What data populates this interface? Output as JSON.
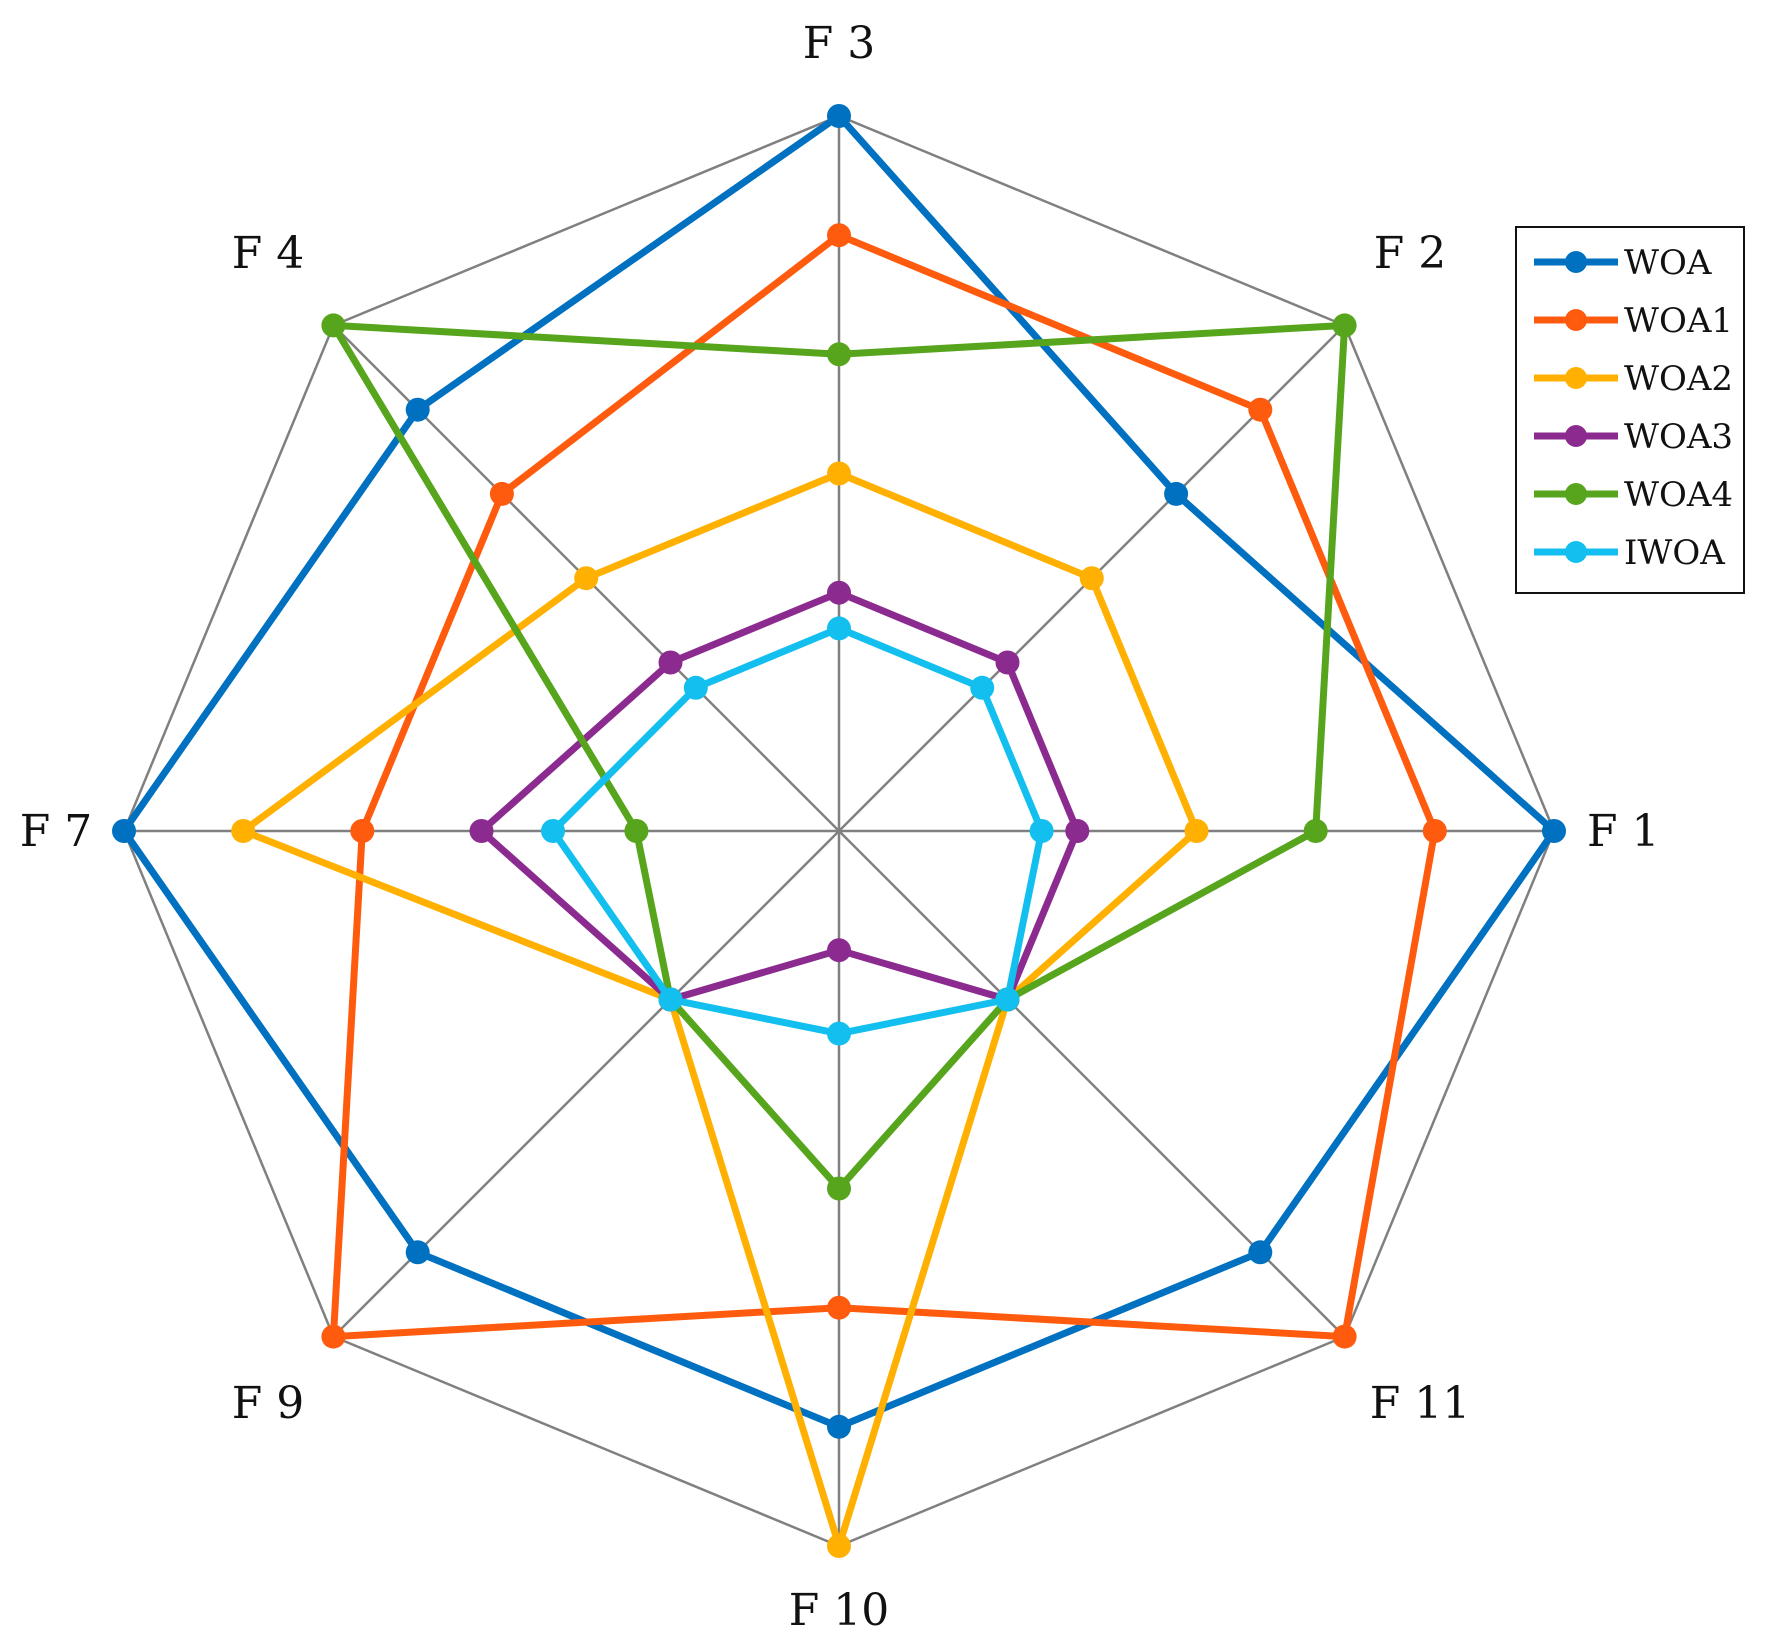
{
  "chart_data": {
    "type": "radar",
    "title": "",
    "axes": [
      "F 1",
      "F 2",
      "F 3",
      "F 4",
      "F 7",
      "F 9",
      "F 10",
      "F 11"
    ],
    "rlim": [
      0,
      6
    ],
    "ring_count": 6,
    "grid": true,
    "legend_position": "top-right",
    "grid_color": "#808080",
    "series": [
      {
        "name": "WOA",
        "color": "#0070C0",
        "values": [
          6,
          4,
          6,
          5,
          6,
          5,
          5,
          5
        ]
      },
      {
        "name": "WOA1",
        "color": "#FF5B0F",
        "values": [
          5,
          5,
          5,
          4,
          4,
          6,
          4,
          6
        ]
      },
      {
        "name": "WOA2",
        "color": "#FFB000",
        "values": [
          3,
          3,
          3,
          3,
          5,
          2,
          6,
          2
        ]
      },
      {
        "name": "WOA3",
        "color": "#8B2A8F",
        "values": [
          2,
          2,
          2,
          2,
          3,
          2,
          1,
          2
        ]
      },
      {
        "name": "WOA4",
        "color": "#56A51D",
        "values": [
          4,
          6,
          4,
          6,
          1.7,
          2,
          3,
          2
        ]
      },
      {
        "name": "IWOA",
        "color": "#12BFEF",
        "values": [
          1.7,
          1.7,
          1.7,
          1.7,
          2.4,
          2,
          1.7,
          2
        ]
      }
    ]
  }
}
